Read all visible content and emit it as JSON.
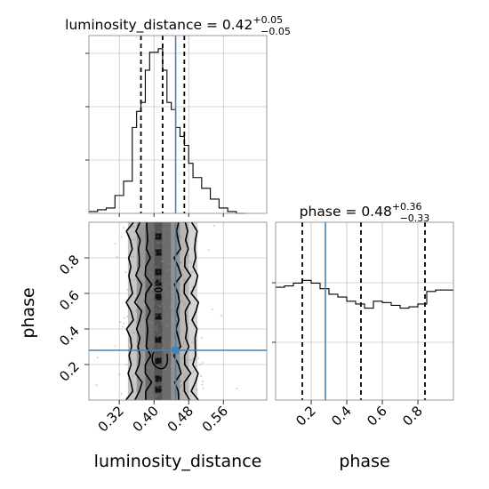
{
  "chart_data": [
    {
      "type": "histogram",
      "parameter": "luminosity_distance",
      "title": {
        "prefix": "luminosity_distance = 0.42",
        "plus": "+0.05",
        "minus": "−0.05"
      },
      "xlim": [
        0.25,
        0.66
      ],
      "quantiles": [
        0.37,
        0.42,
        0.47
      ],
      "truth": 0.45,
      "bin_edges": [
        0.25,
        0.27,
        0.29,
        0.31,
        0.33,
        0.35,
        0.36,
        0.37,
        0.38,
        0.39,
        0.4,
        0.41,
        0.42,
        0.43,
        0.44,
        0.45,
        0.46,
        0.47,
        0.48,
        0.49,
        0.51,
        0.53,
        0.55,
        0.57,
        0.59,
        0.61
      ],
      "counts": [
        1,
        2,
        3,
        10,
        18,
        48,
        57,
        62,
        80,
        90,
        90,
        92,
        80,
        62,
        58,
        48,
        43,
        38,
        28,
        20,
        14,
        8,
        3,
        1,
        0
      ]
    },
    {
      "type": "histogram",
      "parameter": "phase",
      "title": {
        "prefix": "phase = 0.48",
        "plus": "+0.36",
        "minus": "−0.33"
      },
      "xlim": [
        0.0,
        1.0
      ],
      "quantiles": [
        0.15,
        0.48,
        0.84
      ],
      "truth": 0.28,
      "bin_edges": [
        0.0,
        0.05,
        0.1,
        0.15,
        0.2,
        0.25,
        0.3,
        0.35,
        0.4,
        0.45,
        0.5,
        0.55,
        0.6,
        0.65,
        0.7,
        0.75,
        0.8,
        0.85,
        0.9,
        0.95,
        1.0
      ],
      "counts": [
        81,
        82,
        84,
        86,
        84,
        80,
        76,
        74,
        71,
        69,
        66,
        71,
        70,
        68,
        66,
        67,
        69,
        78,
        79,
        79
      ]
    },
    {
      "type": "scatter",
      "x": "luminosity_distance",
      "y": "phase",
      "xlim": [
        0.25,
        0.66
      ],
      "ylim": [
        0.0,
        1.0
      ],
      "xticks": [
        0.32,
        0.4,
        0.48,
        0.56
      ],
      "xtick_labels": [
        "0.32",
        "0.40",
        "0.48",
        "0.56"
      ],
      "yticks": [
        0.2,
        0.4,
        0.6,
        0.8
      ],
      "ytick_labels": [
        "0.2",
        "0.4",
        "0.6",
        "0.8"
      ],
      "truth": {
        "x": 0.45,
        "y": 0.28
      },
      "xlabel": "luminosity_distance",
      "ylabel": "phase",
      "column_density": [
        {
          "x": 0.35,
          "d": 0.25
        },
        {
          "x": 0.37,
          "d": 0.55
        },
        {
          "x": 0.39,
          "d": 0.85
        },
        {
          "x": 0.41,
          "d": 1.0
        },
        {
          "x": 0.43,
          "d": 0.85
        },
        {
          "x": 0.45,
          "d": 0.6
        },
        {
          "x": 0.47,
          "d": 0.35
        },
        {
          "x": 0.49,
          "d": 0.15
        }
      ]
    },
    {
      "type": "axis",
      "parameter": "phase",
      "xticks": [
        0.2,
        0.4,
        0.6,
        0.8
      ],
      "xtick_labels": [
        "0.2",
        "0.4",
        "0.6",
        "0.8"
      ],
      "xlabel": "phase"
    }
  ],
  "colors": {
    "truth": "#4682b4",
    "hist": "#000000",
    "grid": "#b0b0b0",
    "scatter": "#888888"
  }
}
